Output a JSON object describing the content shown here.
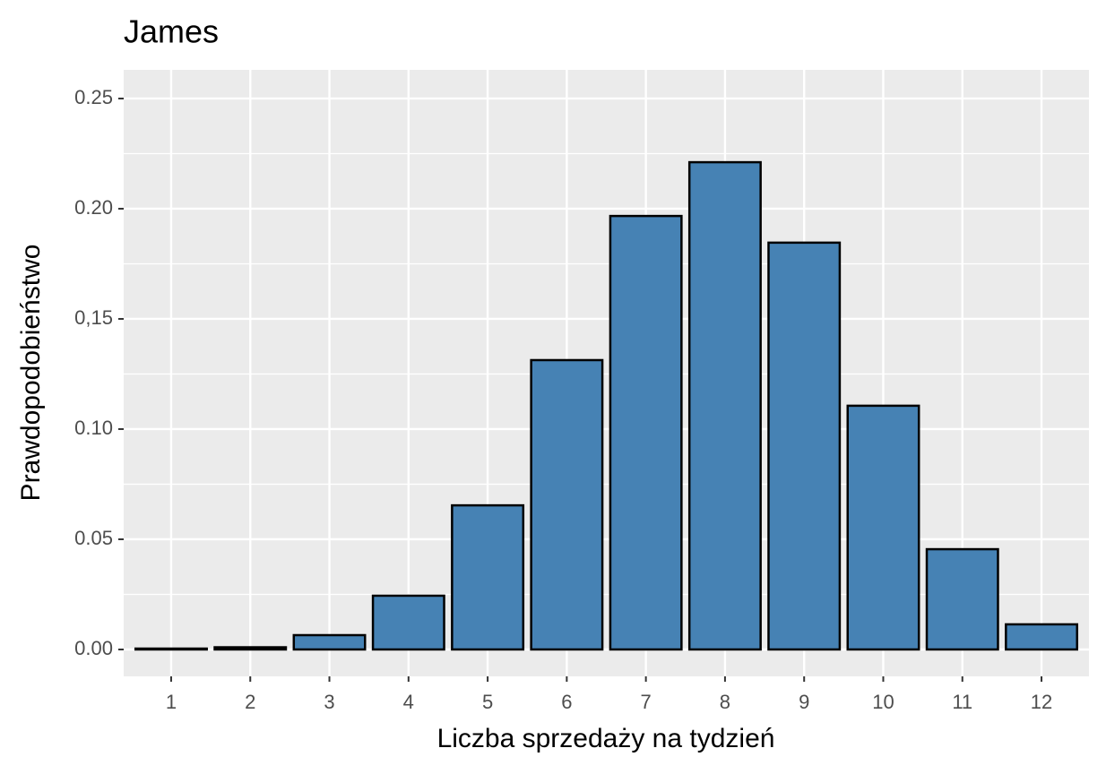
{
  "chart_data": {
    "type": "bar",
    "title": "James",
    "x_label": "Liczba sprzedaży na tydzień",
    "y_label": "Prawdopodobieństwo",
    "categories": [
      "1",
      "2",
      "3",
      "4",
      "5",
      "6",
      "7",
      "8",
      "9",
      "10",
      "11",
      "12"
    ],
    "values": [
      0.0004,
      0.001,
      0.0065,
      0.0244,
      0.0654,
      0.1313,
      0.1967,
      0.2211,
      0.1846,
      0.1106,
      0.0455,
      0.0114
    ],
    "color": "#4682b4",
    "edge_color": "#000000",
    "ylim": [
      -0.0122,
      0.263
    ],
    "yticks": [
      {
        "value": 0.0,
        "label": "0.00"
      },
      {
        "value": 0.05,
        "label": "0.05"
      },
      {
        "value": 0.1,
        "label": "0.10"
      },
      {
        "value": 0.15,
        "label": "0,15"
      },
      {
        "value": 0.2,
        "label": "0.20"
      },
      {
        "value": 0.25,
        "label": "0.25"
      }
    ],
    "grid": true
  }
}
